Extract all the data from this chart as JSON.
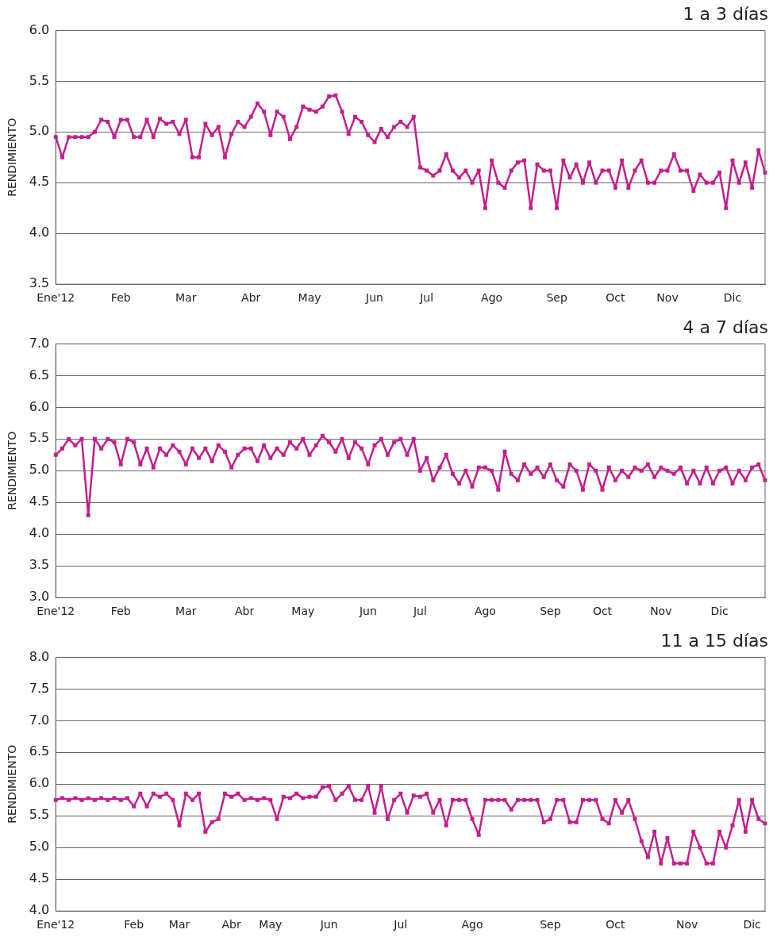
{
  "chart_data": [
    {
      "type": "line",
      "title": "1 a 3 días",
      "ylabel": "RENDIMIENTO",
      "marker": "square",
      "grid": "y",
      "line_style": "solid",
      "categories": [
        "Ene'12",
        null,
        null,
        null,
        null,
        null,
        null,
        null,
        null,
        null,
        "Feb",
        null,
        null,
        null,
        null,
        null,
        null,
        null,
        null,
        null,
        "Mar",
        null,
        null,
        null,
        null,
        null,
        null,
        null,
        null,
        null,
        "Abr",
        null,
        null,
        null,
        null,
        null,
        null,
        null,
        null,
        "May",
        null,
        null,
        null,
        null,
        null,
        null,
        null,
        null,
        null,
        "Jun",
        null,
        null,
        null,
        null,
        null,
        null,
        null,
        "Jul",
        null,
        null,
        null,
        null,
        null,
        null,
        null,
        null,
        null,
        "Ago",
        null,
        null,
        null,
        null,
        null,
        null,
        null,
        null,
        null,
        "Sep",
        null,
        null,
        null,
        null,
        null,
        null,
        null,
        null,
        "Oct",
        null,
        null,
        null,
        null,
        null,
        null,
        null,
        "Nov",
        null,
        null,
        null,
        null,
        null,
        null,
        null,
        null,
        null,
        "Dic",
        null,
        null,
        null,
        null,
        null
      ],
      "series": [
        {
          "color": "#c41e8c",
          "values": [
            4.95,
            4.75,
            4.95,
            4.95,
            4.95,
            4.95,
            5.0,
            5.12,
            5.1,
            4.95,
            5.12,
            5.12,
            4.95,
            4.95,
            5.12,
            4.95,
            5.13,
            5.08,
            5.1,
            4.98,
            5.12,
            4.75,
            4.75,
            5.08,
            4.97,
            5.05,
            4.75,
            4.98,
            5.1,
            5.05,
            5.15,
            5.28,
            5.2,
            4.97,
            5.2,
            5.15,
            4.93,
            5.05,
            5.25,
            5.22,
            5.2,
            5.25,
            5.35,
            5.36,
            5.2,
            4.98,
            5.15,
            5.1,
            4.97,
            4.9,
            5.03,
            4.95,
            5.05,
            5.1,
            5.05,
            5.15,
            4.65,
            4.62,
            4.57,
            4.62,
            4.78,
            4.62,
            4.55,
            4.62,
            4.5,
            4.62,
            4.25,
            4.72,
            4.5,
            4.45,
            4.62,
            4.7,
            4.72,
            4.25,
            4.68,
            4.62,
            4.62,
            4.25,
            4.72,
            4.55,
            4.68,
            4.5,
            4.7,
            4.5,
            4.62,
            4.62,
            4.45,
            4.72,
            4.45,
            4.62,
            4.72,
            4.5,
            4.5,
            4.62,
            4.62,
            4.78,
            4.62,
            4.62,
            4.42,
            4.58,
            4.5,
            4.5,
            4.6,
            4.25,
            4.72,
            4.5,
            4.7,
            4.45,
            4.82,
            4.6
          ]
        }
      ],
      "ylim": [
        3.5,
        6.0
      ],
      "yticks": [
        {
          "value": 3.5,
          "label": "3.5"
        },
        {
          "value": 4,
          "label": "4.0"
        },
        {
          "value": 4.5,
          "label": "4.5"
        },
        {
          "value": 5,
          "label": "5.0"
        },
        {
          "value": 5.5,
          "label": "5.5"
        },
        {
          "value": 6,
          "label": "6.0"
        }
      ]
    },
    {
      "type": "line",
      "title": "4 a 7 días",
      "ylabel": "RENDIMIENTO",
      "marker": "square",
      "grid": "y",
      "line_style": "solid",
      "categories": [
        "Ene'12",
        null,
        null,
        null,
        null,
        null,
        null,
        null,
        null,
        null,
        "Feb",
        null,
        null,
        null,
        null,
        null,
        null,
        null,
        null,
        null,
        "Mar",
        null,
        null,
        null,
        null,
        null,
        null,
        null,
        null,
        "Abr",
        null,
        null,
        null,
        null,
        null,
        null,
        null,
        null,
        "May",
        null,
        null,
        null,
        null,
        null,
        null,
        null,
        null,
        null,
        "Jun",
        null,
        null,
        null,
        null,
        null,
        null,
        null,
        "Jul",
        null,
        null,
        null,
        null,
        null,
        null,
        null,
        null,
        null,
        "Ago",
        null,
        null,
        null,
        null,
        null,
        null,
        null,
        null,
        null,
        "Sep",
        null,
        null,
        null,
        null,
        null,
        null,
        null,
        "Oct",
        null,
        null,
        null,
        null,
        null,
        null,
        null,
        null,
        "Nov",
        null,
        null,
        null,
        null,
        null,
        null,
        null,
        null,
        "Dic",
        null,
        null,
        null,
        null,
        null,
        null,
        null
      ],
      "series": [
        {
          "color": "#c41e8c",
          "values": [
            5.25,
            5.35,
            5.5,
            5.4,
            5.5,
            4.3,
            5.5,
            5.35,
            5.5,
            5.45,
            5.1,
            5.5,
            5.45,
            5.1,
            5.35,
            5.05,
            5.35,
            5.25,
            5.4,
            5.3,
            5.1,
            5.35,
            5.2,
            5.35,
            5.15,
            5.4,
            5.3,
            5.05,
            5.25,
            5.35,
            5.35,
            5.15,
            5.4,
            5.2,
            5.35,
            5.25,
            5.45,
            5.35,
            5.5,
            5.25,
            5.4,
            5.55,
            5.45,
            5.3,
            5.5,
            5.2,
            5.45,
            5.35,
            5.1,
            5.4,
            5.5,
            5.25,
            5.45,
            5.5,
            5.25,
            5.5,
            5.0,
            5.2,
            4.85,
            5.05,
            5.25,
            4.95,
            4.8,
            5.0,
            4.75,
            5.05,
            5.05,
            5.0,
            4.7,
            5.3,
            4.95,
            4.85,
            5.1,
            4.95,
            5.05,
            4.9,
            5.1,
            4.85,
            4.75,
            5.1,
            5.0,
            4.7,
            5.1,
            5.0,
            4.7,
            5.05,
            4.85,
            5.0,
            4.9,
            5.05,
            5.0,
            5.1,
            4.9,
            5.05,
            5.0,
            4.95,
            5.05,
            4.8,
            5.0,
            4.8,
            5.05,
            4.8,
            5.0,
            5.05,
            4.8,
            5.0,
            4.85,
            5.05,
            5.1,
            4.85
          ]
        }
      ],
      "ylim": [
        3.0,
        7.0
      ],
      "yticks": [
        {
          "value": 3,
          "label": "3.0"
        },
        {
          "value": 3.5,
          "label": "3.5"
        },
        {
          "value": 4,
          "label": "4.0"
        },
        {
          "value": 4.5,
          "label": "4.5"
        },
        {
          "value": 5,
          "label": "5.0"
        },
        {
          "value": 5.5,
          "label": "5.5"
        },
        {
          "value": 6,
          "label": "6.0"
        },
        {
          "value": 6.5,
          "label": "6.5"
        },
        {
          "value": 7,
          "label": "7.0"
        }
      ]
    },
    {
      "type": "line",
      "title": "11 a 15 días",
      "ylabel": "RENDIMIENTO",
      "marker": "square",
      "grid": "y",
      "line_style": "solid",
      "categories": [
        "Ene'12",
        null,
        null,
        null,
        null,
        null,
        null,
        null,
        null,
        null,
        null,
        null,
        "Feb",
        null,
        null,
        null,
        null,
        null,
        null,
        "Mar",
        null,
        null,
        null,
        null,
        null,
        null,
        null,
        "Abr",
        null,
        null,
        null,
        null,
        null,
        "May",
        null,
        null,
        null,
        null,
        null,
        null,
        null,
        null,
        "Jun",
        null,
        null,
        null,
        null,
        null,
        null,
        null,
        null,
        null,
        null,
        "Jul",
        null,
        null,
        null,
        null,
        null,
        null,
        null,
        null,
        null,
        null,
        "Ago",
        null,
        null,
        null,
        null,
        null,
        null,
        null,
        null,
        null,
        null,
        null,
        "Sep",
        null,
        null,
        null,
        null,
        null,
        null,
        null,
        null,
        null,
        "Oct",
        null,
        null,
        null,
        null,
        null,
        null,
        null,
        null,
        null,
        null,
        "Nov",
        null,
        null,
        null,
        null,
        null,
        null,
        null,
        null,
        null,
        "Dic",
        null,
        null
      ],
      "series": [
        {
          "color": "#c41e8c",
          "values": [
            5.75,
            5.78,
            5.75,
            5.78,
            5.75,
            5.78,
            5.75,
            5.78,
            5.75,
            5.78,
            5.75,
            5.78,
            5.65,
            5.85,
            5.65,
            5.85,
            5.8,
            5.85,
            5.75,
            5.35,
            5.85,
            5.75,
            5.85,
            5.25,
            5.4,
            5.45,
            5.85,
            5.8,
            5.85,
            5.75,
            5.78,
            5.75,
            5.78,
            5.75,
            5.45,
            5.8,
            5.78,
            5.85,
            5.78,
            5.8,
            5.8,
            5.95,
            5.97,
            5.75,
            5.85,
            5.97,
            5.75,
            5.75,
            5.97,
            5.55,
            5.97,
            5.45,
            5.75,
            5.85,
            5.55,
            5.82,
            5.8,
            5.85,
            5.55,
            5.75,
            5.35,
            5.75,
            5.75,
            5.75,
            5.45,
            5.2,
            5.75,
            5.75,
            5.75,
            5.75,
            5.6,
            5.75,
            5.75,
            5.75,
            5.75,
            5.4,
            5.45,
            5.75,
            5.75,
            5.4,
            5.4,
            5.75,
            5.75,
            5.75,
            5.45,
            5.38,
            5.75,
            5.55,
            5.75,
            5.45,
            5.1,
            4.85,
            5.25,
            4.75,
            5.15,
            4.75,
            4.75,
            4.75,
            5.25,
            5.0,
            4.75,
            4.75,
            5.25,
            5.0,
            5.35,
            5.75,
            5.25,
            5.75,
            5.45,
            5.38
          ]
        }
      ],
      "ylim": [
        4.0,
        8.0
      ],
      "yticks": [
        {
          "value": 4,
          "label": "4.0"
        },
        {
          "value": 4.5,
          "label": "4.5"
        },
        {
          "value": 5,
          "label": "5.0"
        },
        {
          "value": 5.5,
          "label": "5.5"
        },
        {
          "value": 6,
          "label": "6.0"
        },
        {
          "value": 6.5,
          "label": "6.5"
        },
        {
          "value": 7,
          "label": "7.0"
        },
        {
          "value": 7.5,
          "label": "7.5"
        },
        {
          "value": 8,
          "label": "8.0"
        }
      ]
    }
  ]
}
